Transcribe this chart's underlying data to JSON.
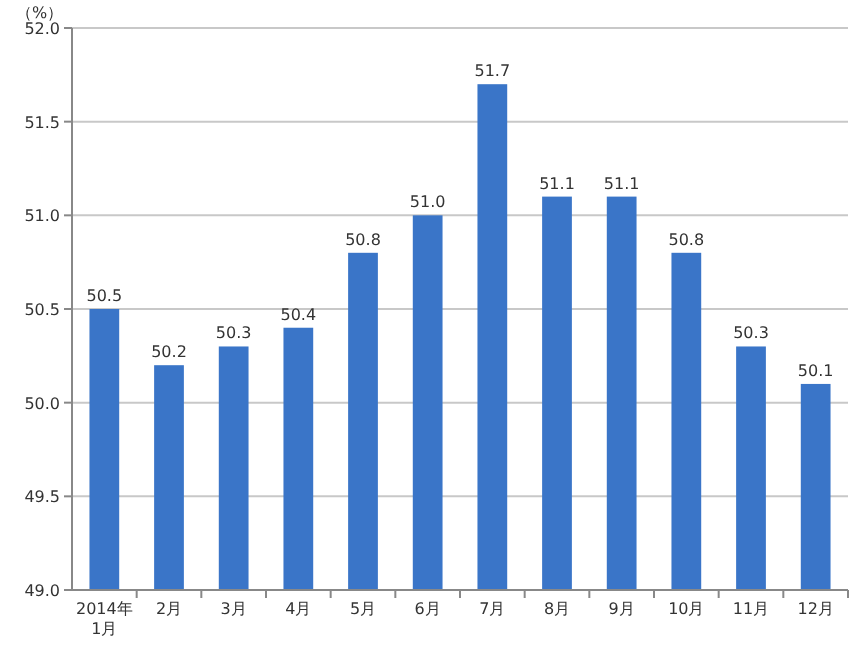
{
  "chart_data": {
    "type": "bar",
    "ylabel": "（%）",
    "categories": [
      "2014年\n1月",
      "2月",
      "3月",
      "4月",
      "5月",
      "6月",
      "7月",
      "8月",
      "9月",
      "10月",
      "11月",
      "12月"
    ],
    "values": [
      50.5,
      50.2,
      50.3,
      50.4,
      50.8,
      51.0,
      51.7,
      51.1,
      51.1,
      50.8,
      50.3,
      50.1
    ],
    "value_labels": [
      "50.5",
      "50.2",
      "50.3",
      "50.4",
      "50.8",
      "51.0",
      "51.7",
      "51.1",
      "51.1",
      "50.8",
      "50.3",
      "50.1"
    ],
    "color": "#3a75c8",
    "ylim": [
      49,
      52
    ],
    "yticks": [
      {
        "value": 49,
        "label": "49.0"
      },
      {
        "value": 49.5,
        "label": "49.5"
      },
      {
        "value": 50,
        "label": "50.0"
      },
      {
        "value": 50.5,
        "label": "50.5"
      },
      {
        "value": 51,
        "label": "51.0"
      },
      {
        "value": 51.5,
        "label": "51.5"
      },
      {
        "value": 52,
        "label": "52.0"
      }
    ],
    "grid": "y"
  }
}
